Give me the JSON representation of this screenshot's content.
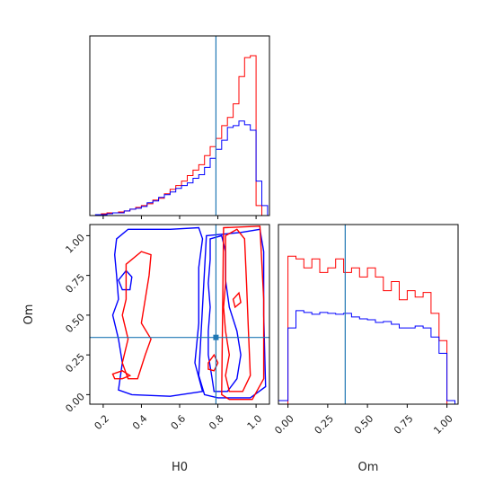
{
  "chart_data": {
    "type": "corner",
    "parameters": [
      "H0",
      "Om"
    ],
    "truth": {
      "H0": 0.79,
      "Om": 0.36
    },
    "colors": {
      "series_a": "#ff0000",
      "series_b": "#0000ff",
      "truth": "#1f77b4"
    },
    "axes": {
      "H0": {
        "range": [
          0.13,
          1.07
        ],
        "ticks": [
          "0.2",
          "0.4",
          "0.6",
          "0.8",
          "1.0"
        ],
        "tick_values": [
          0.2,
          0.4,
          0.6,
          0.8,
          1.0
        ],
        "label": "H0"
      },
      "Om": {
        "range": [
          -0.06,
          1.07
        ],
        "ticks": [
          "0.00",
          "0.25",
          "0.50",
          "0.75",
          "1.00"
        ],
        "tick_values": [
          0.0,
          0.25,
          0.5,
          0.75,
          1.0
        ],
        "label": "Om"
      }
    },
    "hist_H0": {
      "bin_edges": [
        0.1,
        0.13,
        0.16,
        0.19,
        0.22,
        0.25,
        0.28,
        0.31,
        0.34,
        0.37,
        0.4,
        0.43,
        0.46,
        0.49,
        0.52,
        0.55,
        0.58,
        0.61,
        0.64,
        0.67,
        0.7,
        0.73,
        0.76,
        0.79,
        0.82,
        0.85,
        0.88,
        0.91,
        0.94,
        0.97,
        1.0,
        1.03,
        1.06
      ],
      "series": [
        {
          "color": "red",
          "counts": [
            0,
            0,
            1,
            2,
            3,
            3,
            4,
            5,
            7,
            9,
            11,
            13,
            17,
            19,
            24,
            29,
            33,
            38,
            44,
            50,
            56,
            66,
            76,
            85,
            99,
            108,
            123,
            153,
            174,
            176,
            11,
            0
          ]
        },
        {
          "color": "blue",
          "counts": [
            0,
            0,
            1,
            1,
            2,
            3,
            3,
            5,
            7,
            8,
            10,
            14,
            16,
            20,
            23,
            26,
            30,
            33,
            36,
            41,
            45,
            53,
            63,
            73,
            83,
            97,
            99,
            104,
            100,
            94,
            38,
            11
          ]
        }
      ]
    },
    "hist_Om": {
      "bin_edges": [
        -0.06,
        0.0,
        0.05,
        0.1,
        0.15,
        0.2,
        0.25,
        0.3,
        0.35,
        0.4,
        0.45,
        0.5,
        0.55,
        0.6,
        0.65,
        0.7,
        0.75,
        0.8,
        0.85,
        0.9,
        0.95,
        1.0,
        1.05
      ],
      "series": [
        {
          "color": "red",
          "counts": [
            0,
            163,
            160,
            150,
            160,
            145,
            150,
            160,
            145,
            150,
            140,
            150,
            140,
            125,
            135,
            115,
            125,
            118,
            123,
            100,
            70,
            0
          ]
        },
        {
          "color": "blue",
          "counts": [
            4,
            84,
            103,
            101,
            99,
            101,
            100,
            99,
            100,
            96,
            94,
            93,
            90,
            91,
            88,
            84,
            84,
            86,
            84,
            74,
            56,
            4
          ]
        }
      ]
    }
  }
}
